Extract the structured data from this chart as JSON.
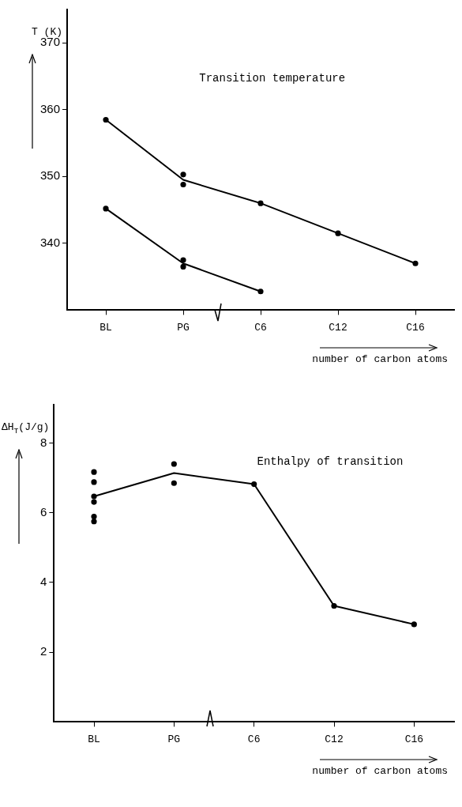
{
  "chart_data": [
    {
      "type": "line",
      "title": "Transition temperature",
      "xlabel": "number of carbon atoms",
      "ylabel": "T (K)",
      "categories": [
        "BL",
        "PG",
        "C6",
        "C12",
        "C16"
      ],
      "ylim": [
        330,
        375
      ],
      "yticks": [
        340,
        350,
        360,
        370
      ],
      "grid": false,
      "legend": false,
      "series": [
        {
          "color": "#000000",
          "marker": "none",
          "values": [
            345.2,
            337,
            332.8,
            null,
            null
          ]
        },
        {
          "color": "#000000",
          "marker": "none",
          "values": [
            358.5,
            349.5,
            346,
            341.5,
            337
          ]
        },
        {
          "type": "scatter",
          "color": "#000000",
          "marker": "circle",
          "x": [
            "BL",
            "BL",
            "PG",
            "PG",
            "PG",
            "PG",
            "C6",
            "C6",
            "C12",
            "C16"
          ],
          "values": [
            358.5,
            345.2,
            350.3,
            348.8,
            337.5,
            336.5,
            346,
            332.8,
            341.5,
            337
          ]
        }
      ]
    },
    {
      "type": "line",
      "title": "Enthalpy of transition",
      "xlabel": "number of carbon atoms",
      "ylabel": "ΔH$_{T}$(J/g)",
      "categories": [
        "BL",
        "PG",
        "C6",
        "C12",
        "C16"
      ],
      "ylim": [
        0,
        9.1
      ],
      "yticks": [
        2,
        4,
        6,
        8
      ],
      "grid": false,
      "legend": false,
      "series": [
        {
          "color": "#000000",
          "marker": "none",
          "values": [
            6.47,
            7.14,
            6.82,
            3.33,
            2.8
          ]
        },
        {
          "type": "scatter",
          "color": "#000000",
          "marker": "circle",
          "x": [
            "BL",
            "BL",
            "BL",
            "BL",
            "BL",
            "BL",
            "PG",
            "PG",
            "C6",
            "C12",
            "C16"
          ],
          "values": [
            7.17,
            6.88,
            6.47,
            6.31,
            5.89,
            5.75,
            7.4,
            6.85,
            6.82,
            3.33,
            2.8
          ]
        }
      ]
    }
  ]
}
